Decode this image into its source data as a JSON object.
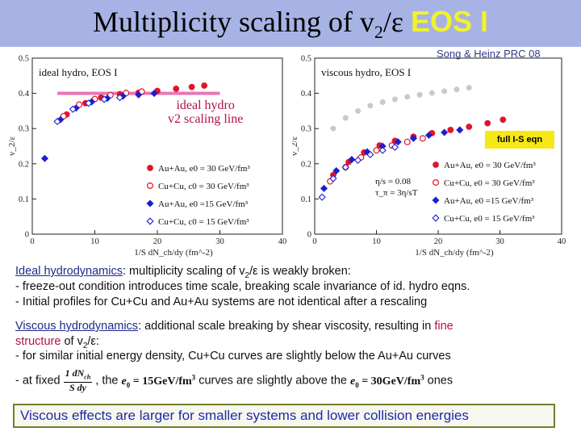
{
  "title": {
    "main": "Multiplicity scaling of v",
    "sub": "2",
    "after": "/ε",
    "eos": "EOS I"
  },
  "credit": "Song & Heinz PRC 08",
  "annotations": {
    "ideal_line1": "ideal hydro",
    "ideal_line2": "v2 scaling line",
    "full_is": "full I-S eqn"
  },
  "colors": {
    "title_bar": "#a7b3e4",
    "eos": "#f2f22a",
    "red": "#e0152a",
    "blue": "#1c1fd0",
    "pink": "#e877b4",
    "gray": "#c9c9c9"
  },
  "chart_data": [
    {
      "type": "scatter",
      "panel": "ideal hydro, EOS I",
      "xlabel": "1/S dN_ch/dy (fm^-2)",
      "ylabel": "v_2/ε",
      "xlim": [
        0,
        40
      ],
      "ylim": [
        0,
        0.5
      ],
      "xticks": [
        "0",
        "10",
        "20",
        "30",
        "40"
      ],
      "yticks": [
        "0",
        "0.1",
        "0.2",
        "0.3",
        "0.4",
        "0.5"
      ],
      "legend_position": "lower-right",
      "series": [
        {
          "name": "Au+Au, e0 = 30 GeV/fm^3",
          "marker": "filled-circle",
          "color": "#e0152a",
          "x": [
            5.5,
            8.5,
            11.0,
            14.0,
            17.0,
            20.0,
            23.0,
            25.5,
            27.5
          ],
          "y": [
            0.34,
            0.372,
            0.388,
            0.398,
            0.402,
            0.407,
            0.413,
            0.418,
            0.422
          ]
        },
        {
          "name": "Cu+Cu, c0 = 30 GeV/fm^3",
          "marker": "open-circle",
          "color": "#e0152a",
          "x": [
            5.0,
            7.5,
            10.0,
            12.5,
            15.0,
            17.5
          ],
          "y": [
            0.335,
            0.368,
            0.384,
            0.395,
            0.401,
            0.405
          ]
        },
        {
          "name": "Au+Au, e0 =15 GeV/fm^3",
          "marker": "filled-diamond",
          "color": "#1c1fd0",
          "x": [
            2.0,
            4.5,
            7.0,
            9.5,
            12.0,
            14.5,
            17.0,
            19.5
          ],
          "y": [
            0.215,
            0.325,
            0.358,
            0.376,
            0.386,
            0.392,
            0.396,
            0.4
          ]
        },
        {
          "name": "Cu+Cu, c0 = 15 GeV/fm^3",
          "marker": "open-diamond",
          "color": "#1c1fd0",
          "x": [
            4.0,
            6.5,
            9.0,
            11.5,
            14.0
          ],
          "y": [
            0.32,
            0.355,
            0.372,
            0.383,
            0.388
          ]
        }
      ],
      "scaling_line": {
        "x": [
          4,
          30
        ],
        "y": [
          0.4,
          0.4
        ]
      }
    },
    {
      "type": "scatter",
      "panel": "viscous hydro, EOS I",
      "xlabel": "1/S dN_ch/dy (fm^-2)",
      "ylabel": "v_2/ε",
      "xlim": [
        0,
        40
      ],
      "ylim": [
        0,
        0.5
      ],
      "xticks": [
        "0",
        "10",
        "20",
        "30",
        "40"
      ],
      "yticks": [
        "0",
        "0.1",
        "0.2",
        "0.3",
        "0.4",
        "0.5"
      ],
      "parameters": [
        "η/s = 0.08",
        "τ_π = 3η/sT"
      ],
      "legend_position": "lower-right",
      "series": [
        {
          "name": "Au+Au, e0 = 30 GeV/fm^3",
          "marker": "filled-circle",
          "color": "#e0152a",
          "x": [
            3.0,
            5.5,
            8.0,
            10.5,
            13.0,
            16.0,
            19.0,
            22.0,
            25.0,
            28.0,
            30.5
          ],
          "y": [
            0.168,
            0.205,
            0.232,
            0.252,
            0.265,
            0.277,
            0.287,
            0.296,
            0.305,
            0.315,
            0.325
          ]
        },
        {
          "name": "Cu+Cu, e0 = 30 GeV/fm^3",
          "marker": "open-circle",
          "color": "#e0152a",
          "x": [
            2.5,
            5.0,
            7.5,
            10.0,
            12.5,
            15.0,
            17.5
          ],
          "y": [
            0.15,
            0.19,
            0.218,
            0.238,
            0.252,
            0.262,
            0.272
          ]
        },
        {
          "name": "Au+Au, e0 =15 GeV/fm^3",
          "marker": "filled-diamond",
          "color": "#1c1fd0",
          "x": [
            1.5,
            3.5,
            6.0,
            8.5,
            11.0,
            13.5,
            16.0,
            18.5,
            21.0,
            23.5
          ],
          "y": [
            0.13,
            0.18,
            0.212,
            0.234,
            0.25,
            0.262,
            0.272,
            0.281,
            0.289,
            0.296
          ]
        },
        {
          "name": "Cu+Cu, e0 = 15 GeV/fm^3",
          "marker": "open-diamond",
          "color": "#1c1fd0",
          "x": [
            1.2,
            3.0,
            5.0,
            7.0,
            9.0,
            11.0,
            13.0
          ],
          "y": [
            0.105,
            0.158,
            0.19,
            0.21,
            0.226,
            0.238,
            0.247
          ]
        },
        {
          "name": "ideal hydro (gray)",
          "marker": "gray-filled",
          "color": "#c9c9c9",
          "x": [
            3.0,
            5.0,
            7.0,
            9.0,
            11.0,
            13.0,
            15.0,
            17.0,
            19.0,
            21.0,
            23.0,
            25.0
          ],
          "y": [
            0.3,
            0.33,
            0.35,
            0.365,
            0.375,
            0.383,
            0.39,
            0.396,
            0.401,
            0.406,
            0.411,
            0.416
          ]
        }
      ]
    }
  ],
  "text": {
    "ideal_head": "Ideal hydrodynamics",
    "ideal_rest_a": ":  multiplicity scaling of v",
    "ideal_sub": "2",
    "ideal_rest_b": "/ε is weakly broken:",
    "ideal_b1": "- freeze-out condition introduces time scale, breaking scale invariance of id. hydro eqns.",
    "ideal_b2": "- Initial profiles for Cu+Cu and Au+Au systems are not identical after a rescaling",
    "visc_head": "Viscous hydrodynamics",
    "visc_rest": ":  additional scale breaking by shear viscosity, resulting in ",
    "visc_fine1": "fine",
    "visc_fine2": "structure",
    "visc_of": " of v",
    "visc_sub": "2",
    "visc_end": "/ε:",
    "visc_b1": "- for similar initial energy density, Cu+Cu curves are slightly below the Au+Au curves",
    "visc_b2a": "- at fixed",
    "frac_num": "1  dN",
    "frac_num_sub": "ch",
    "frac_den": "S   dy",
    "visc_b2b": ", the",
    "eq15": "e",
    "eq15_sub": "0",
    "eq15_rest": " = 15GeV/fm",
    "eq15_sup": "3",
    "visc_b2c": "curves are slightly above the",
    "eq30": "e",
    "eq30_sub": "0",
    "eq30_rest": " = 30GeV/fm",
    "eq30_sup": "3",
    "visc_b2d": "ones",
    "conclusion": "Viscous effects are larger for smaller systems and lower collision energies"
  }
}
